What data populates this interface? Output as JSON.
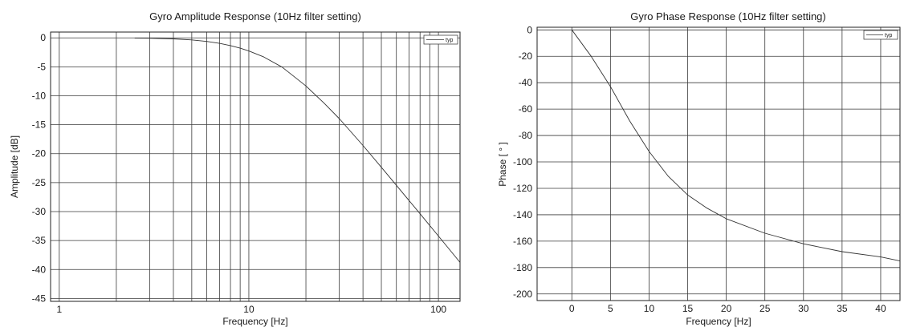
{
  "chart_data": [
    {
      "type": "line",
      "title": "Gyro Amplitude Response (10Hz filter setting)",
      "xlabel": "Frequency [Hz]",
      "ylabel": "Amplitude [dB]",
      "xscale": "log",
      "xlim": [
        0.9,
        130
      ],
      "ylim": [
        -45.5,
        1
      ],
      "xticks": [
        1,
        10,
        100
      ],
      "xtick_labels": [
        "1",
        "10",
        "100"
      ],
      "yticks": [
        0,
        -5,
        -10,
        -15,
        -20,
        -25,
        -30,
        -35,
        -40,
        -45
      ],
      "ytick_labels": [
        "0",
        "-5",
        "-10",
        "-15",
        "-20",
        "-25",
        "-30",
        "-35",
        "-40",
        "-45"
      ],
      "grid": true,
      "legend": "top-right",
      "series": [
        {
          "name": "typ",
          "x": [
            2.5,
            3,
            4,
            5,
            6,
            7,
            8,
            9,
            10,
            12,
            15,
            20,
            25,
            30,
            40,
            50,
            60,
            80,
            100,
            130
          ],
          "y": [
            -0.04,
            -0.07,
            -0.18,
            -0.36,
            -0.62,
            -0.95,
            -1.34,
            -1.78,
            -2.26,
            -3.3,
            -5.06,
            -8.3,
            -11.3,
            -13.95,
            -18.58,
            -22.34,
            -25.46,
            -30.38,
            -34.22,
            -38.77
          ]
        }
      ]
    },
    {
      "type": "line",
      "title": "Gyro Phase Response (10Hz filter setting)",
      "xlabel": "Frequency [Hz]",
      "ylabel": "Phase [ ° ]",
      "xlim": [
        -4.5,
        42.5
      ],
      "ylim": [
        -205,
        2
      ],
      "xticks": [
        0,
        5,
        10,
        15,
        20,
        25,
        30,
        35,
        40
      ],
      "xtick_labels": [
        "0",
        "5",
        "10",
        "15",
        "20",
        "25",
        "30",
        "35",
        "40"
      ],
      "yticks": [
        0,
        -20,
        -40,
        -60,
        -80,
        -100,
        -120,
        -140,
        -160,
        -180,
        -200
      ],
      "ytick_labels": [
        "0",
        "-20",
        "-40",
        "-60",
        "-80",
        "-100",
        "-120",
        "-140",
        "-160",
        "-180",
        "-200"
      ],
      "grid": true,
      "legend": "top-right",
      "series": [
        {
          "name": "typ",
          "x": [
            0,
            2.5,
            5,
            7.5,
            10,
            12.5,
            15,
            17.5,
            20,
            25,
            30,
            35,
            40,
            42.5
          ],
          "y": [
            0,
            -20,
            -43,
            -69,
            -92,
            -111,
            -125,
            -135,
            -143,
            -154,
            -162,
            -168,
            -172,
            -175
          ]
        }
      ]
    }
  ]
}
